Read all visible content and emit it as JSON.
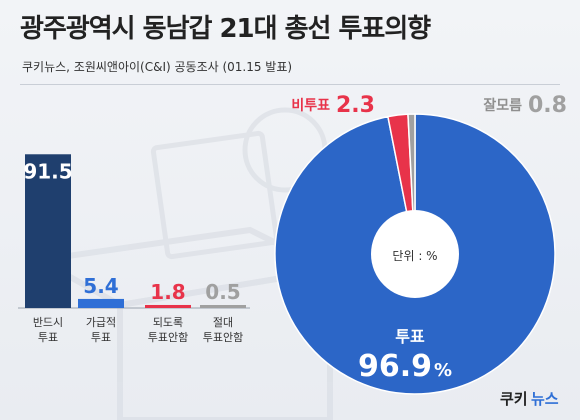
{
  "header": {
    "title": "광주광역시 동남갑 21대 총선 투표의향",
    "subtitle": "쿠키뉴스, 조원씨앤아이(C&I) 공동조사 (01.15 발표)"
  },
  "logo": {
    "text_1": "쿠키",
    "text_2": "뉴스"
  },
  "colors": {
    "navy": "#1f3f6e",
    "blue": "#2f6fd6",
    "red": "#e8334a",
    "gray": "#a0a0a0",
    "white": "#ffffff"
  },
  "chart_data": [
    {
      "type": "bar",
      "categories": [
        {
          "line1": "반드시",
          "line2": "투표"
        },
        {
          "line1": "가급적",
          "line2": "투표"
        },
        {
          "line1": "되도록",
          "line2": "투표안함"
        },
        {
          "line1": "절대",
          "line2": "투표안함"
        }
      ],
      "values": [
        91.5,
        5.4,
        1.8,
        0.5
      ],
      "value_labels": [
        "91.5",
        "5.4",
        "1.8",
        "0.5"
      ],
      "bar_colors": [
        "#1f3f6e",
        "#2f6fd6",
        "#e8334a",
        "#a0a0a0"
      ],
      "ylim": [
        0,
        100
      ]
    },
    {
      "type": "pie",
      "unit_label": "단위 : %",
      "slices": [
        {
          "name": "투표",
          "value": 96.9,
          "value_label": "96.9",
          "pct_sign": "%",
          "color": "#2c66c7"
        },
        {
          "name": "비투표",
          "value": 2.3,
          "value_label": "2.3",
          "color": "#e8334a"
        },
        {
          "name": "잘모름",
          "value": 0.8,
          "value_label": "0.8",
          "color": "#a0a0a0"
        }
      ]
    }
  ]
}
